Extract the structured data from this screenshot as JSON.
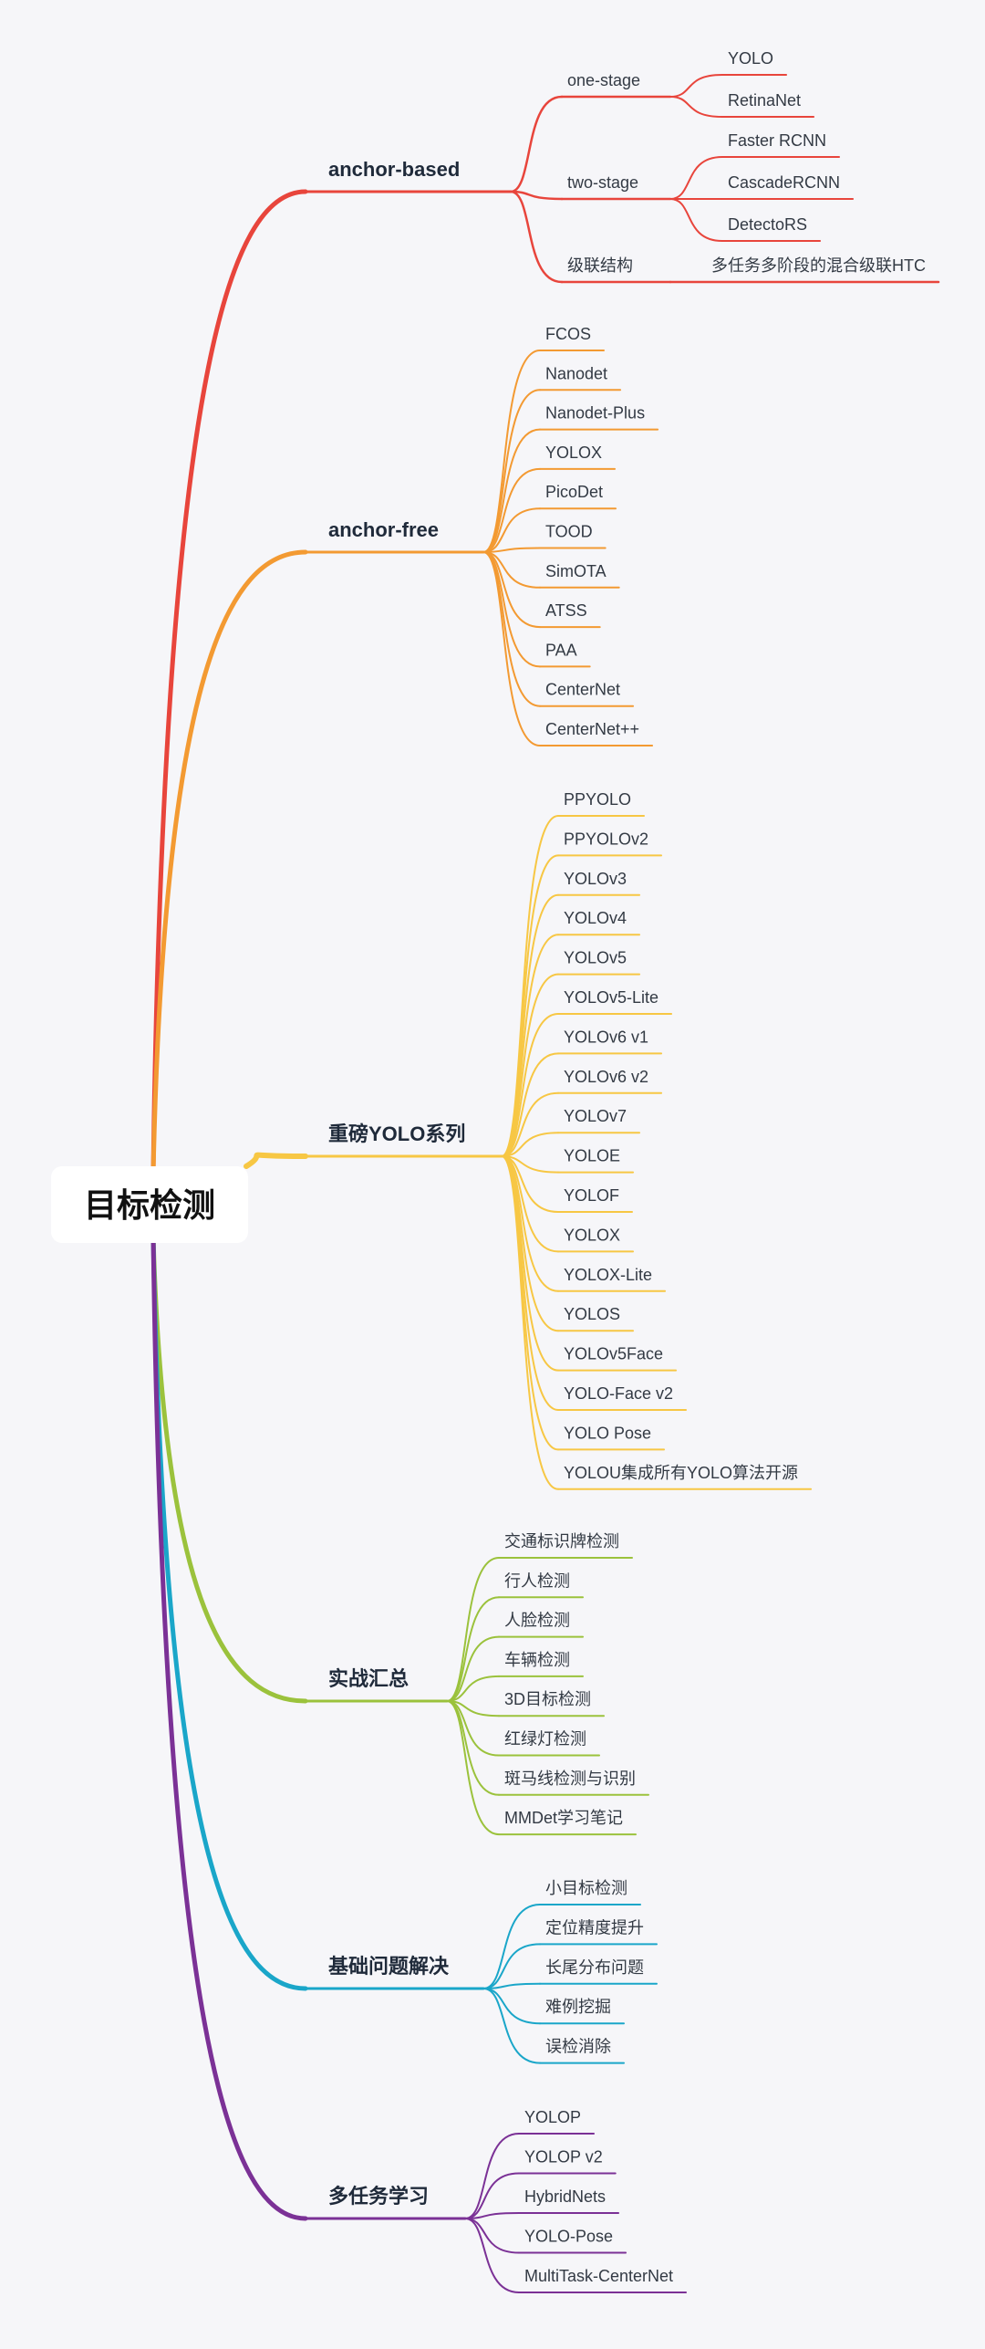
{
  "root": {
    "label": "目标检测"
  },
  "branches": [
    {
      "label": "anchor-based",
      "color": "#e8453c",
      "groups": [
        {
          "label": "one-stage",
          "items": [
            "YOLO",
            "RetinaNet"
          ]
        },
        {
          "label": "two-stage",
          "items": [
            "Faster RCNN",
            "CascadeRCNN",
            "DetectoRS"
          ]
        },
        {
          "label": "级联结构",
          "items": [
            "多任务多阶段的混合级联HTC"
          ]
        }
      ]
    },
    {
      "label": "anchor-free",
      "color": "#f39a32",
      "items": [
        "FCOS",
        "Nanodet",
        "Nanodet-Plus",
        "YOLOX",
        "PicoDet",
        "TOOD",
        "SimOTA",
        "ATSS",
        "PAA",
        "CenterNet",
        "CenterNet++"
      ]
    },
    {
      "label": "重磅YOLO系列",
      "color": "#f7c744",
      "items": [
        "PPYOLO",
        "PPYOLOv2",
        "YOLOv3",
        "YOLOv4",
        "YOLOv5",
        "YOLOv5-Lite",
        "YOLOv6 v1",
        "YOLOv6 v2",
        "YOLOv7",
        "YOLOE",
        "YOLOF",
        "YOLOX",
        "YOLOX-Lite",
        "YOLOS",
        "YOLOv5Face",
        "YOLO-Face v2",
        "YOLO Pose",
        "YOLOU集成所有YOLO算法开源"
      ]
    },
    {
      "label": "实战汇总",
      "color": "#9bc23c",
      "items": [
        "交通标识牌检测",
        "行人检测",
        "人脸检测",
        "车辆检测",
        "3D目标检测",
        "红绿灯检测",
        "斑马线检测与识别",
        "MMDet学习笔记"
      ]
    },
    {
      "label": "基础问题解决",
      "color": "#1aa6c9",
      "items": [
        "小目标检测",
        "定位精度提升",
        "长尾分布问题",
        "难例挖掘",
        "误检消除"
      ]
    },
    {
      "label": "多任务学习",
      "color": "#7b3196",
      "items": [
        "YOLOP",
        "YOLOP v2",
        "HybridNets",
        "YOLO-Pose",
        "MultiTask-CenterNet"
      ]
    }
  ]
}
